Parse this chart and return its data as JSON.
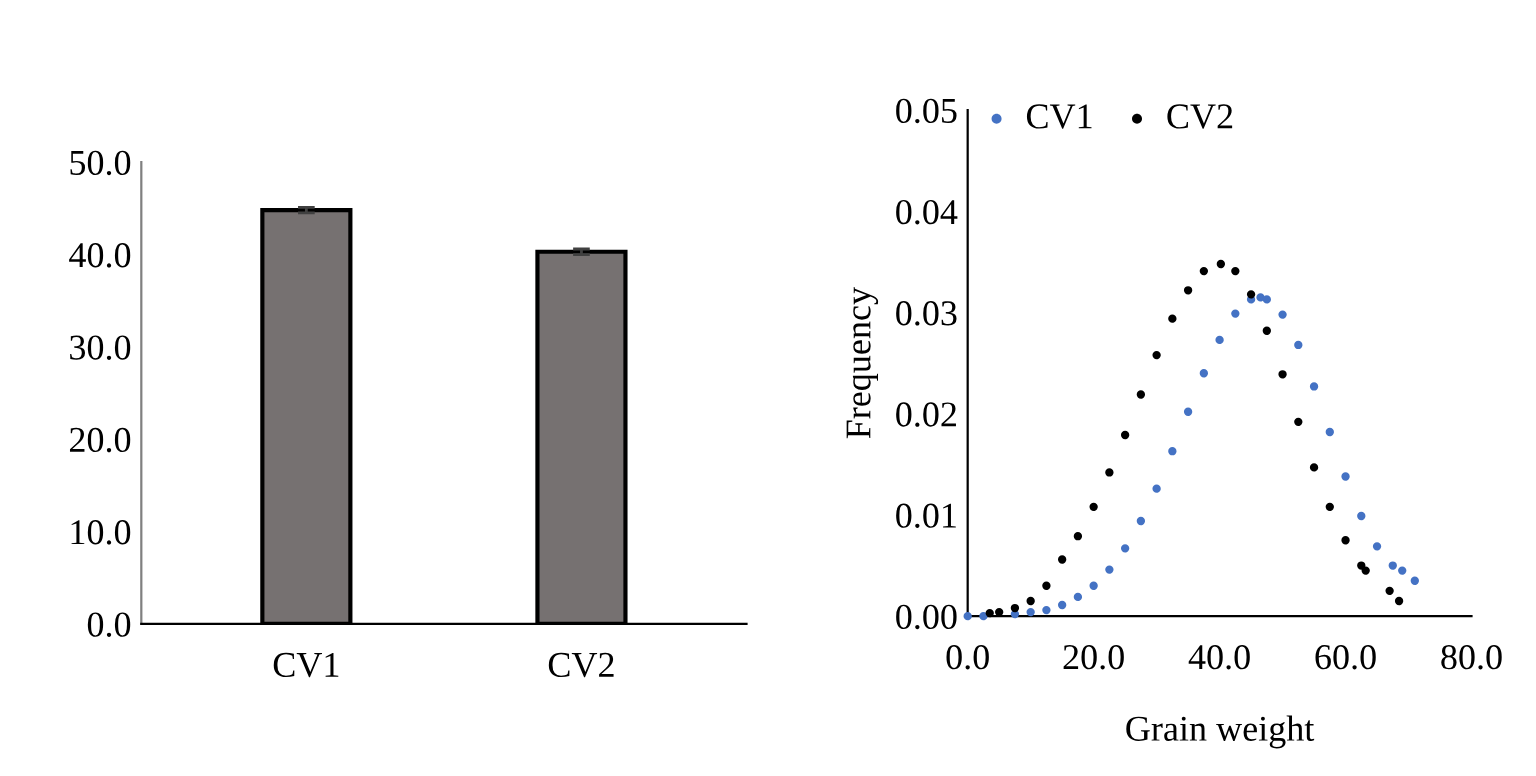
{
  "chart_data": [
    {
      "type": "bar",
      "categories": [
        "CV1",
        "CV2"
      ],
      "values": [
        44.8,
        40.3
      ],
      "errors": [
        0.3,
        0.3
      ],
      "color": "#767171",
      "ylim": [
        0,
        50
      ],
      "yticks": [
        {
          "value": 0,
          "label": "0.0"
        },
        {
          "value": 10,
          "label": "10.0"
        },
        {
          "value": 20,
          "label": "20.0"
        },
        {
          "value": 30,
          "label": "30.0"
        },
        {
          "value": 40,
          "label": "40.0"
        },
        {
          "value": 50,
          "label": "50.0"
        }
      ],
      "grid": false
    },
    {
      "type": "scatter",
      "xlabel": "Grain weight",
      "ylabel": "Frequency",
      "marker": "circle",
      "grid": false,
      "legend": "top left",
      "xlim": [
        0,
        80
      ],
      "xticks": [
        {
          "value": 0,
          "label": "0.0"
        },
        {
          "value": 20,
          "label": "20.0"
        },
        {
          "value": 40,
          "label": "40.0"
        },
        {
          "value": 60,
          "label": "60.0"
        },
        {
          "value": 80,
          "label": "80.0"
        }
      ],
      "ylim": [
        0,
        0.05
      ],
      "yticks": [
        {
          "value": 0,
          "label": "0.00"
        },
        {
          "value": 0.01,
          "label": "0.01"
        },
        {
          "value": 0.02,
          "label": "0.02"
        },
        {
          "value": 0.03,
          "label": "0.03"
        },
        {
          "value": 0.04,
          "label": "0.04"
        },
        {
          "value": 0.05,
          "label": "0.05"
        }
      ],
      "series": [
        {
          "name": "CV1",
          "color": "#4472c4",
          "x": [
            0,
            2.5,
            5,
            7.5,
            10,
            12.5,
            15,
            17.5,
            20,
            22.5,
            25,
            27.5,
            30,
            32.5,
            35,
            37.5,
            40,
            42.5,
            45,
            46.5,
            47.5,
            50,
            52.5,
            55,
            57.5,
            60,
            62.5,
            65,
            67.5,
            69,
            71
          ],
          "values": [
            0.0,
            0.0,
            null,
            0.0002,
            0.0004,
            0.0006,
            0.0011,
            0.0019,
            0.003,
            0.0046,
            0.0067,
            0.0094,
            0.0126,
            0.0163,
            0.0202,
            0.024,
            0.0273,
            0.0299,
            0.0313,
            0.0315,
            0.0313,
            0.0298,
            0.0268,
            0.0227,
            0.0182,
            0.0138,
            0.0099,
            0.0069,
            0.005,
            0.0045,
            0.0035
          ]
        },
        {
          "name": "CV2",
          "color": "#000000",
          "x": [
            3.5,
            5,
            7.5,
            10,
            12.5,
            15,
            17.5,
            20,
            22.5,
            25,
            27.5,
            30,
            32.5,
            35,
            37.5,
            40.2,
            42.5,
            45,
            47.5,
            50,
            52.5,
            55,
            57.5,
            60,
            62.5,
            63.2,
            67,
            68.5
          ],
          "values": [
            0.0003,
            0.0004,
            0.0008,
            0.0015,
            0.003,
            0.0056,
            0.0079,
            0.0108,
            0.0142,
            0.0179,
            0.0219,
            0.0258,
            0.0294,
            0.0322,
            0.0341,
            0.0348,
            0.0341,
            0.0318,
            0.0282,
            0.0239,
            0.0192,
            0.0147,
            0.0108,
            0.0075,
            0.005,
            0.0045,
            0.0025,
            0.0015
          ]
        }
      ]
    }
  ]
}
